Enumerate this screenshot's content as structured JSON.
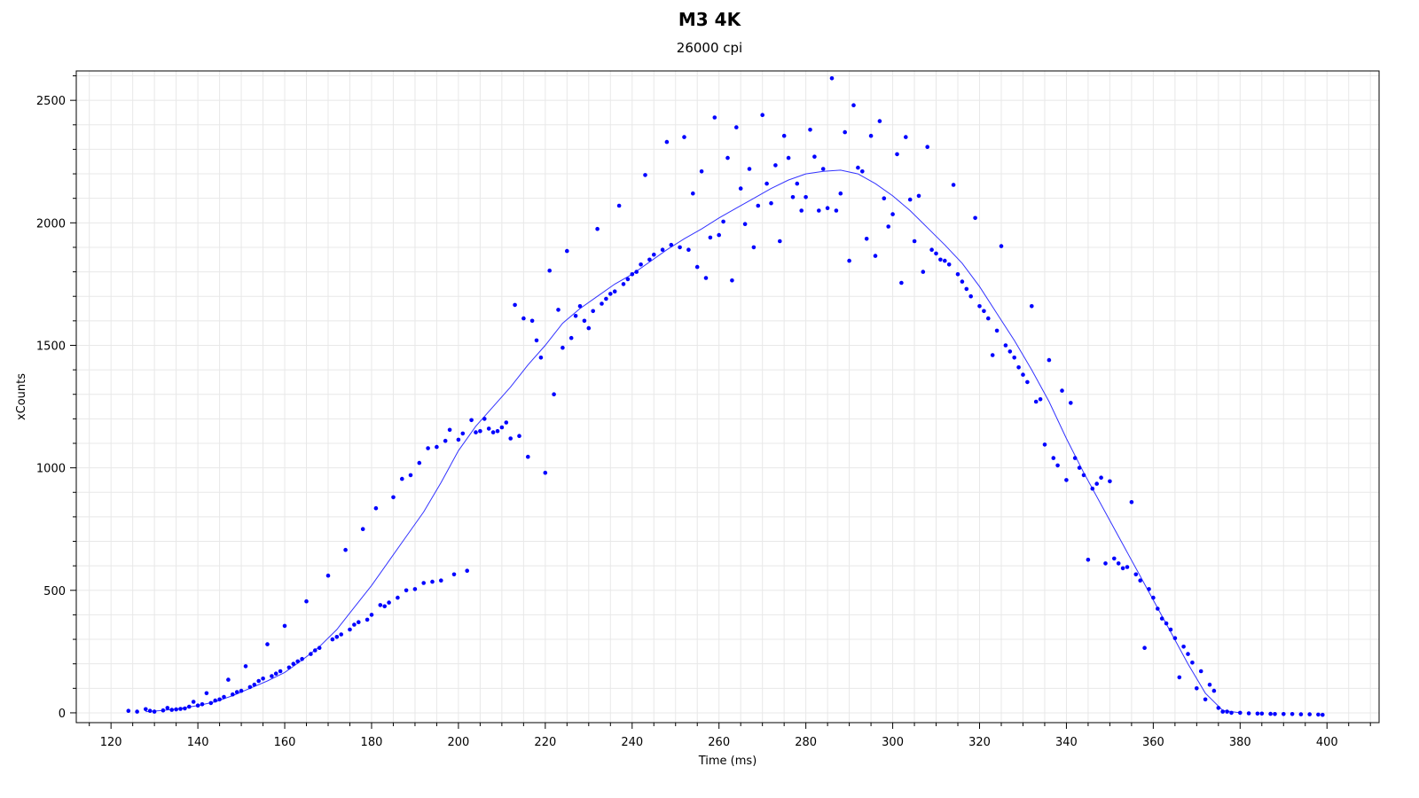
{
  "chart_data": {
    "type": "scatter",
    "title": "M3 4K",
    "subtitle": "26000 cpi",
    "xlabel": "Time (ms)",
    "ylabel": "xCounts",
    "xlim": [
      112,
      412
    ],
    "ylim": [
      -40,
      2620
    ],
    "xticks": [
      120,
      140,
      160,
      180,
      200,
      220,
      240,
      260,
      280,
      300,
      320,
      340,
      360,
      380,
      400
    ],
    "yticks": [
      0,
      500,
      1000,
      1500,
      2000,
      2500
    ],
    "grid": true,
    "colors": {
      "series": "#0000ff",
      "line": "#3333ff",
      "grid": "#e8e8e8",
      "axis": "#000000"
    },
    "series": [
      {
        "type": "scatter",
        "points": [
          [
            124,
            8
          ],
          [
            126,
            5
          ],
          [
            128,
            15
          ],
          [
            129,
            8
          ],
          [
            130,
            5
          ],
          [
            132,
            10
          ],
          [
            133,
            20
          ],
          [
            134,
            12
          ],
          [
            135,
            14
          ],
          [
            136,
            16
          ],
          [
            137,
            18
          ],
          [
            138,
            25
          ],
          [
            139,
            45
          ],
          [
            140,
            30
          ],
          [
            141,
            35
          ],
          [
            142,
            80
          ],
          [
            143,
            40
          ],
          [
            144,
            50
          ],
          [
            145,
            55
          ],
          [
            146,
            65
          ],
          [
            147,
            135
          ],
          [
            148,
            75
          ],
          [
            149,
            85
          ],
          [
            150,
            90
          ],
          [
            151,
            190
          ],
          [
            152,
            105
          ],
          [
            153,
            115
          ],
          [
            154,
            130
          ],
          [
            155,
            140
          ],
          [
            156,
            280
          ],
          [
            157,
            150
          ],
          [
            158,
            160
          ],
          [
            159,
            170
          ],
          [
            160,
            355
          ],
          [
            161,
            185
          ],
          [
            162,
            200
          ],
          [
            163,
            210
          ],
          [
            164,
            220
          ],
          [
            165,
            455
          ],
          [
            166,
            240
          ],
          [
            167,
            255
          ],
          [
            168,
            265
          ],
          [
            170,
            560
          ],
          [
            171,
            300
          ],
          [
            172,
            310
          ],
          [
            173,
            320
          ],
          [
            174,
            665
          ],
          [
            175,
            340
          ],
          [
            176,
            360
          ],
          [
            177,
            370
          ],
          [
            178,
            750
          ],
          [
            179,
            380
          ],
          [
            180,
            400
          ],
          [
            181,
            835
          ],
          [
            182,
            440
          ],
          [
            183,
            435
          ],
          [
            184,
            450
          ],
          [
            185,
            880
          ],
          [
            186,
            470
          ],
          [
            187,
            955
          ],
          [
            188,
            500
          ],
          [
            189,
            970
          ],
          [
            190,
            505
          ],
          [
            191,
            1020
          ],
          [
            192,
            530
          ],
          [
            193,
            1080
          ],
          [
            194,
            535
          ],
          [
            195,
            1085
          ],
          [
            196,
            540
          ],
          [
            197,
            1110
          ],
          [
            198,
            1155
          ],
          [
            199,
            565
          ],
          [
            200,
            1115
          ],
          [
            201,
            1140
          ],
          [
            202,
            580
          ],
          [
            203,
            1195
          ],
          [
            204,
            1145
          ],
          [
            205,
            1150
          ],
          [
            206,
            1200
          ],
          [
            207,
            1160
          ],
          [
            208,
            1145
          ],
          [
            209,
            1150
          ],
          [
            210,
            1165
          ],
          [
            211,
            1185
          ],
          [
            212,
            1120
          ],
          [
            213,
            1665
          ],
          [
            214,
            1130
          ],
          [
            215,
            1610
          ],
          [
            216,
            1045
          ],
          [
            217,
            1600
          ],
          [
            218,
            1520
          ],
          [
            219,
            1450
          ],
          [
            220,
            980
          ],
          [
            221,
            1805
          ],
          [
            222,
            1300
          ],
          [
            223,
            1645
          ],
          [
            224,
            1490
          ],
          [
            225,
            1885
          ],
          [
            226,
            1530
          ],
          [
            227,
            1620
          ],
          [
            228,
            1660
          ],
          [
            229,
            1600
          ],
          [
            230,
            1570
          ],
          [
            231,
            1640
          ],
          [
            232,
            1975
          ],
          [
            233,
            1670
          ],
          [
            234,
            1690
          ],
          [
            235,
            1710
          ],
          [
            236,
            1720
          ],
          [
            237,
            2070
          ],
          [
            238,
            1750
          ],
          [
            239,
            1770
          ],
          [
            240,
            1790
          ],
          [
            241,
            1800
          ],
          [
            242,
            1830
          ],
          [
            243,
            2195
          ],
          [
            244,
            1850
          ],
          [
            245,
            1870
          ],
          [
            247,
            1890
          ],
          [
            248,
            2330
          ],
          [
            249,
            1910
          ],
          [
            251,
            1900
          ],
          [
            252,
            2350
          ],
          [
            253,
            1890
          ],
          [
            254,
            2120
          ],
          [
            255,
            1820
          ],
          [
            256,
            2210
          ],
          [
            257,
            1775
          ],
          [
            258,
            1940
          ],
          [
            259,
            2430
          ],
          [
            260,
            1950
          ],
          [
            261,
            2005
          ],
          [
            262,
            2265
          ],
          [
            263,
            1765
          ],
          [
            264,
            2390
          ],
          [
            265,
            2140
          ],
          [
            266,
            1995
          ],
          [
            267,
            2220
          ],
          [
            268,
            1900
          ],
          [
            269,
            2070
          ],
          [
            270,
            2440
          ],
          [
            271,
            2160
          ],
          [
            272,
            2080
          ],
          [
            273,
            2235
          ],
          [
            274,
            1925
          ],
          [
            275,
            2355
          ],
          [
            276,
            2265
          ],
          [
            277,
            2105
          ],
          [
            278,
            2160
          ],
          [
            279,
            2050
          ],
          [
            280,
            2105
          ],
          [
            281,
            2380
          ],
          [
            282,
            2270
          ],
          [
            283,
            2050
          ],
          [
            284,
            2220
          ],
          [
            285,
            2060
          ],
          [
            286,
            2590
          ],
          [
            287,
            2050
          ],
          [
            288,
            2120
          ],
          [
            289,
            2370
          ],
          [
            290,
            1845
          ],
          [
            291,
            2480
          ],
          [
            292,
            2225
          ],
          [
            293,
            2210
          ],
          [
            294,
            1935
          ],
          [
            295,
            2355
          ],
          [
            296,
            1865
          ],
          [
            297,
            2415
          ],
          [
            298,
            2100
          ],
          [
            299,
            1985
          ],
          [
            300,
            2035
          ],
          [
            301,
            2280
          ],
          [
            302,
            1755
          ],
          [
            303,
            2350
          ],
          [
            304,
            2095
          ],
          [
            305,
            1925
          ],
          [
            306,
            2110
          ],
          [
            307,
            1800
          ],
          [
            308,
            2310
          ],
          [
            309,
            1890
          ],
          [
            310,
            1875
          ],
          [
            311,
            1850
          ],
          [
            312,
            1845
          ],
          [
            313,
            1830
          ],
          [
            314,
            2155
          ],
          [
            315,
            1790
          ],
          [
            316,
            1760
          ],
          [
            317,
            1730
          ],
          [
            318,
            1700
          ],
          [
            319,
            2020
          ],
          [
            320,
            1660
          ],
          [
            321,
            1640
          ],
          [
            322,
            1610
          ],
          [
            323,
            1460
          ],
          [
            324,
            1560
          ],
          [
            325,
            1905
          ],
          [
            326,
            1500
          ],
          [
            327,
            1475
          ],
          [
            328,
            1450
          ],
          [
            329,
            1410
          ],
          [
            330,
            1380
          ],
          [
            331,
            1350
          ],
          [
            332,
            1660
          ],
          [
            333,
            1270
          ],
          [
            334,
            1280
          ],
          [
            335,
            1095
          ],
          [
            336,
            1440
          ],
          [
            337,
            1040
          ],
          [
            338,
            1010
          ],
          [
            339,
            1315
          ],
          [
            340,
            950
          ],
          [
            341,
            1265
          ],
          [
            342,
            1040
          ],
          [
            343,
            1000
          ],
          [
            344,
            970
          ],
          [
            345,
            625
          ],
          [
            346,
            915
          ],
          [
            347,
            935
          ],
          [
            348,
            960
          ],
          [
            349,
            610
          ],
          [
            350,
            945
          ],
          [
            351,
            630
          ],
          [
            352,
            610
          ],
          [
            353,
            590
          ],
          [
            354,
            595
          ],
          [
            355,
            860
          ],
          [
            356,
            565
          ],
          [
            357,
            540
          ],
          [
            358,
            265
          ],
          [
            359,
            505
          ],
          [
            360,
            470
          ],
          [
            361,
            425
          ],
          [
            362,
            385
          ],
          [
            363,
            365
          ],
          [
            364,
            340
          ],
          [
            365,
            305
          ],
          [
            366,
            145
          ],
          [
            367,
            270
          ],
          [
            368,
            240
          ],
          [
            369,
            205
          ],
          [
            370,
            100
          ],
          [
            371,
            170
          ],
          [
            372,
            55
          ],
          [
            373,
            115
          ],
          [
            374,
            90
          ],
          [
            375,
            20
          ],
          [
            376,
            5
          ],
          [
            377,
            5
          ],
          [
            378,
            0
          ],
          [
            380,
            0
          ],
          [
            382,
            -2
          ],
          [
            384,
            -3
          ],
          [
            385,
            -3
          ],
          [
            387,
            -4
          ],
          [
            388,
            -5
          ],
          [
            390,
            -5
          ],
          [
            392,
            -5
          ],
          [
            394,
            -6
          ],
          [
            396,
            -6
          ],
          [
            398,
            -7
          ],
          [
            399,
            -8
          ]
        ]
      },
      {
        "type": "line",
        "points": [
          [
            128,
            5
          ],
          [
            132,
            10
          ],
          [
            136,
            18
          ],
          [
            140,
            30
          ],
          [
            144,
            45
          ],
          [
            148,
            70
          ],
          [
            152,
            100
          ],
          [
            156,
            130
          ],
          [
            160,
            165
          ],
          [
            164,
            215
          ],
          [
            168,
            270
          ],
          [
            172,
            340
          ],
          [
            176,
            430
          ],
          [
            180,
            520
          ],
          [
            184,
            620
          ],
          [
            188,
            720
          ],
          [
            192,
            820
          ],
          [
            196,
            940
          ],
          [
            200,
            1070
          ],
          [
            204,
            1170
          ],
          [
            208,
            1250
          ],
          [
            212,
            1330
          ],
          [
            216,
            1420
          ],
          [
            220,
            1500
          ],
          [
            224,
            1590
          ],
          [
            228,
            1650
          ],
          [
            232,
            1700
          ],
          [
            236,
            1750
          ],
          [
            240,
            1790
          ],
          [
            244,
            1840
          ],
          [
            248,
            1890
          ],
          [
            252,
            1935
          ],
          [
            256,
            1975
          ],
          [
            260,
            2020
          ],
          [
            264,
            2060
          ],
          [
            268,
            2100
          ],
          [
            272,
            2140
          ],
          [
            276,
            2175
          ],
          [
            280,
            2200
          ],
          [
            284,
            2210
          ],
          [
            288,
            2215
          ],
          [
            292,
            2200
          ],
          [
            296,
            2160
          ],
          [
            300,
            2110
          ],
          [
            304,
            2050
          ],
          [
            308,
            1980
          ],
          [
            312,
            1910
          ],
          [
            316,
            1835
          ],
          [
            320,
            1740
          ],
          [
            324,
            1630
          ],
          [
            328,
            1520
          ],
          [
            332,
            1400
          ],
          [
            336,
            1270
          ],
          [
            340,
            1120
          ],
          [
            344,
            980
          ],
          [
            348,
            850
          ],
          [
            352,
            720
          ],
          [
            356,
            590
          ],
          [
            360,
            460
          ],
          [
            364,
            330
          ],
          [
            368,
            200
          ],
          [
            372,
            80
          ],
          [
            376,
            10
          ],
          [
            380,
            0
          ]
        ]
      }
    ]
  }
}
